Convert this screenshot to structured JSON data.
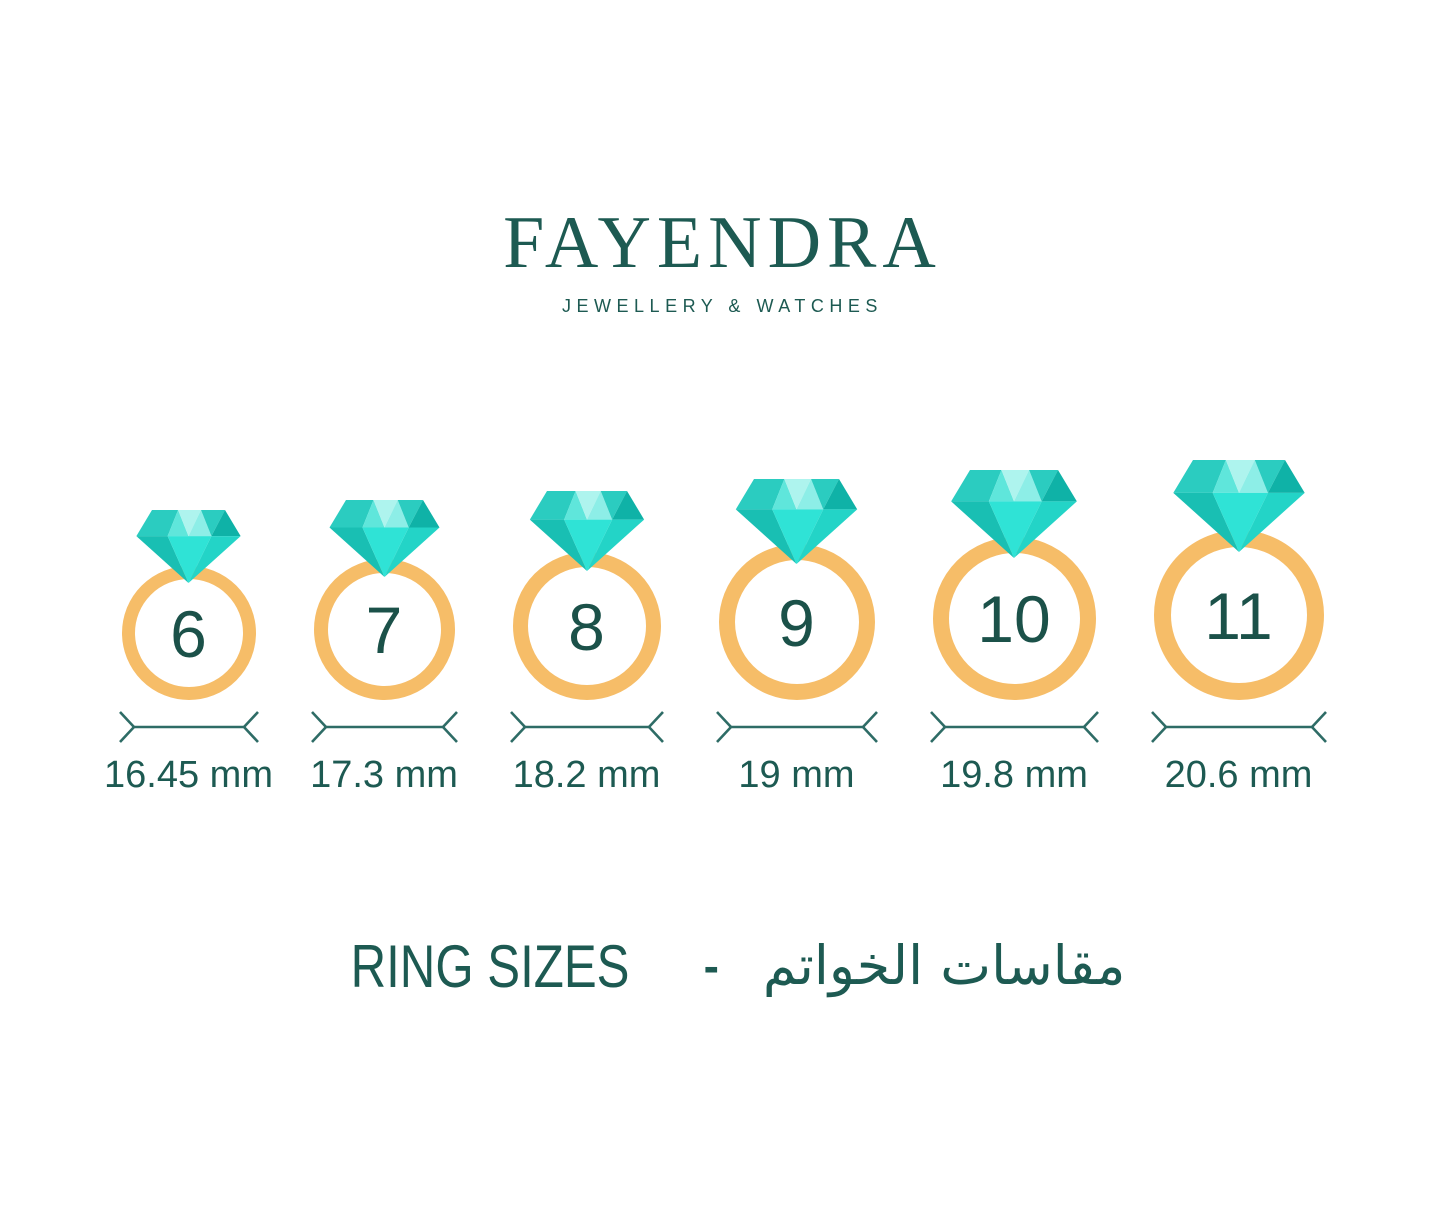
{
  "brand": {
    "name": "FAYENDRA",
    "tagline": "JEWELLERY & WATCHES"
  },
  "rings": [
    {
      "size": "6",
      "diameter_label": "16.45 mm"
    },
    {
      "size": "7",
      "diameter_label": "17.3 mm"
    },
    {
      "size": "8",
      "diameter_label": "18.2 mm"
    },
    {
      "size": "9",
      "diameter_label": "19 mm"
    },
    {
      "size": "10",
      "diameter_label": "19.8 mm"
    },
    {
      "size": "11",
      "diameter_label": "20.6 mm"
    }
  ],
  "footer": {
    "title_en": "RING SIZES",
    "separator": "-",
    "title_ar": "مقاسات الخواتم"
  },
  "icons": {
    "gem": "diamond-icon",
    "measure": "measure-arrow-icon"
  },
  "colors": {
    "teal_text": "#1d5a52",
    "number_teal": "#1b5149",
    "band_orange": "#f6bd68",
    "arrow_teal": "#2e6c66",
    "diamond_darkest": "#0fb2a7",
    "diamond_dark": "#19bfb3",
    "diamond_medium": "#2bccc0",
    "diamond_medbright": "#23d4c7",
    "diamond_bright": "#2fe3d6",
    "diamond_light": "#5fe6db",
    "diamond_lighter": "#8deee7",
    "diamond_lightest": "#aef4ee"
  }
}
